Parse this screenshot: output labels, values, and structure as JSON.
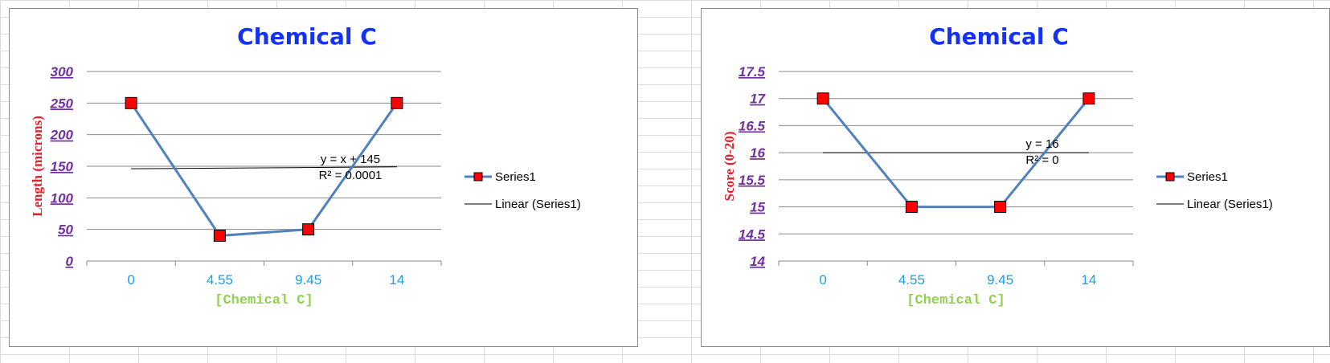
{
  "chart_data": [
    {
      "type": "line",
      "title": "Chemical C",
      "xlabel": "[Chemical C]",
      "ylabel": "Length (microns)",
      "categories": [
        "0",
        "4.55",
        "9.45",
        "14"
      ],
      "ylim": [
        0,
        300
      ],
      "yticks": [
        "0",
        "50",
        "100",
        "150",
        "200",
        "250",
        "300"
      ],
      "grid": true,
      "legend_position": "right",
      "series": [
        {
          "name": "Series1",
          "values": [
            250,
            40,
            50,
            250
          ],
          "color": "#4f81bd",
          "marker": "square",
          "marker_color": "#ff0000"
        }
      ],
      "trendline": {
        "name": "Linear (Series1)",
        "start": 146,
        "end": 149,
        "equation": "y = x + 145",
        "r2": "R² = 0.0001"
      }
    },
    {
      "type": "line",
      "title": "Chemical C",
      "xlabel": "[Chemical C]",
      "ylabel": "Score (0-20)",
      "categories": [
        "0",
        "4.55",
        "9.45",
        "14"
      ],
      "ylim": [
        14,
        17.5
      ],
      "yticks": [
        "14",
        "14.5",
        "15",
        "15.5",
        "16",
        "16.5",
        "17",
        "17.5"
      ],
      "grid": true,
      "legend_position": "right",
      "series": [
        {
          "name": "Series1",
          "values": [
            17,
            15,
            15,
            17
          ],
          "color": "#4f81bd",
          "marker": "square",
          "marker_color": "#ff0000"
        }
      ],
      "trendline": {
        "name": "Linear (Series1)",
        "start": 16,
        "end": 16,
        "equation": "y = 16",
        "r2": "R² = 0"
      }
    }
  ]
}
